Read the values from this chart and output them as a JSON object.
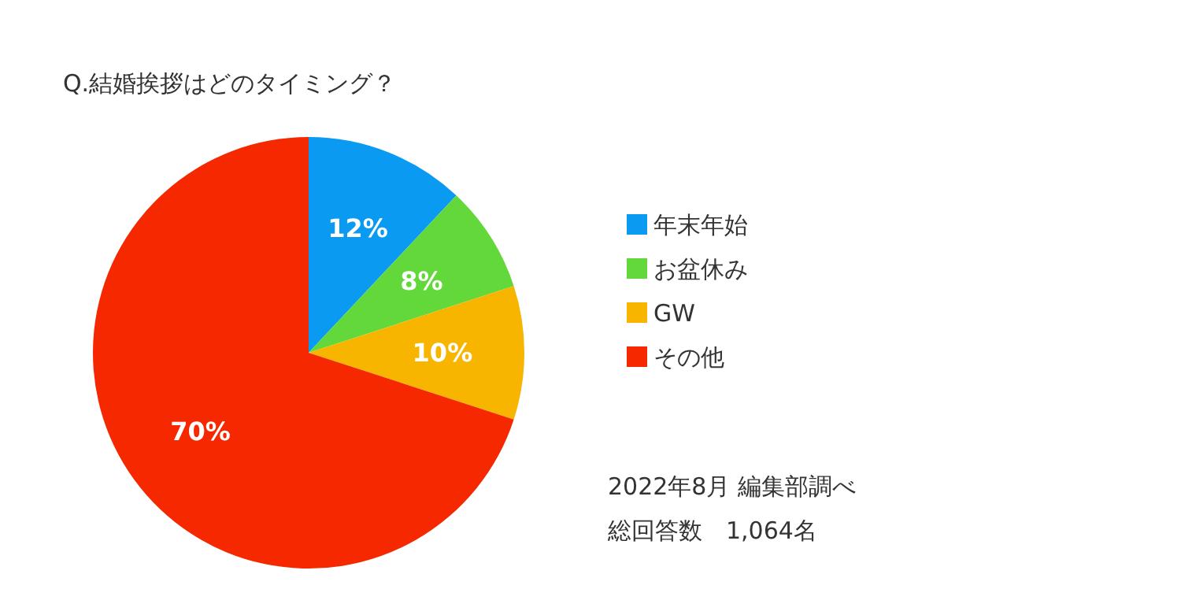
{
  "chart_data": {
    "type": "pie",
    "title": "Q.結婚挨拶はどのタイミング？",
    "categories": [
      "年末年始",
      "お盆休み",
      "GW",
      "その他"
    ],
    "values": [
      12,
      8,
      10,
      70
    ],
    "colors": [
      "#0a9af2",
      "#62d83a",
      "#f7b500",
      "#f62800"
    ],
    "value_labels": [
      "12%",
      "8%",
      "10%",
      "70%"
    ],
    "legend": "right",
    "annotations": [
      "2022年8月 編集部調べ",
      "総回答数　1,064名"
    ]
  }
}
